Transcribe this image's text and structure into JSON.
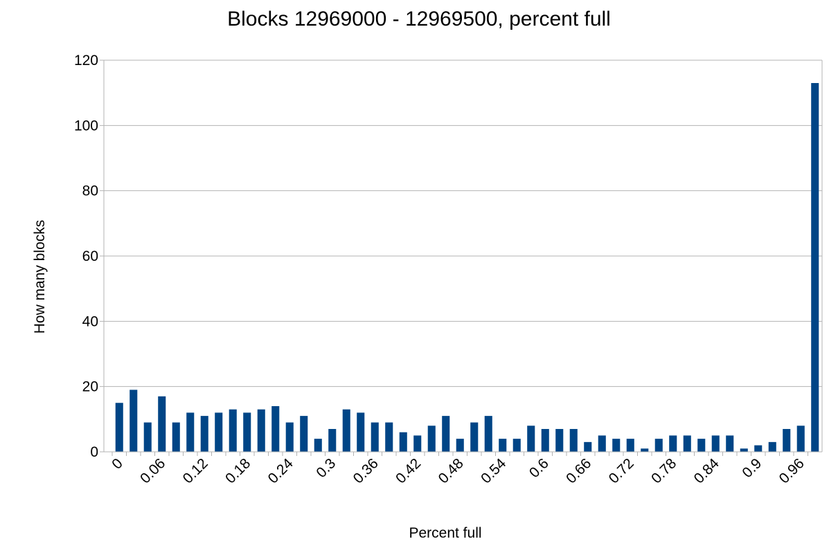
{
  "chart_data": {
    "type": "bar",
    "title": "Blocks 12969000 - 12969500, percent full",
    "x_label": "Percent full",
    "y_label": "How many blocks",
    "categories": [
      "0",
      null,
      null,
      "0.06",
      null,
      null,
      "0.12",
      null,
      null,
      "0.18",
      null,
      null,
      "0.24",
      null,
      null,
      "0.3",
      null,
      null,
      "0.36",
      null,
      null,
      "0.42",
      null,
      null,
      "0.48",
      null,
      null,
      "0.54",
      null,
      null,
      "0.6",
      null,
      null,
      "0.66",
      null,
      null,
      "0.72",
      null,
      null,
      "0.78",
      null,
      null,
      "0.84",
      null,
      null,
      "0.9",
      null,
      null,
      "0.96",
      null
    ],
    "values": [
      15,
      19,
      9,
      17,
      9,
      12,
      11,
      12,
      13,
      12,
      13,
      14,
      9,
      11,
      4,
      7,
      13,
      12,
      9,
      9,
      6,
      5,
      8,
      11,
      4,
      9,
      11,
      4,
      4,
      8,
      7,
      7,
      7,
      3,
      5,
      4,
      4,
      1,
      4,
      5,
      5,
      4,
      5,
      5,
      1,
      2,
      3,
      7,
      8,
      113
    ],
    "color": "#004586",
    "ylim": [
      0,
      120
    ],
    "yticks": [
      0,
      20,
      40,
      60,
      80,
      100,
      120
    ],
    "grid": true
  }
}
